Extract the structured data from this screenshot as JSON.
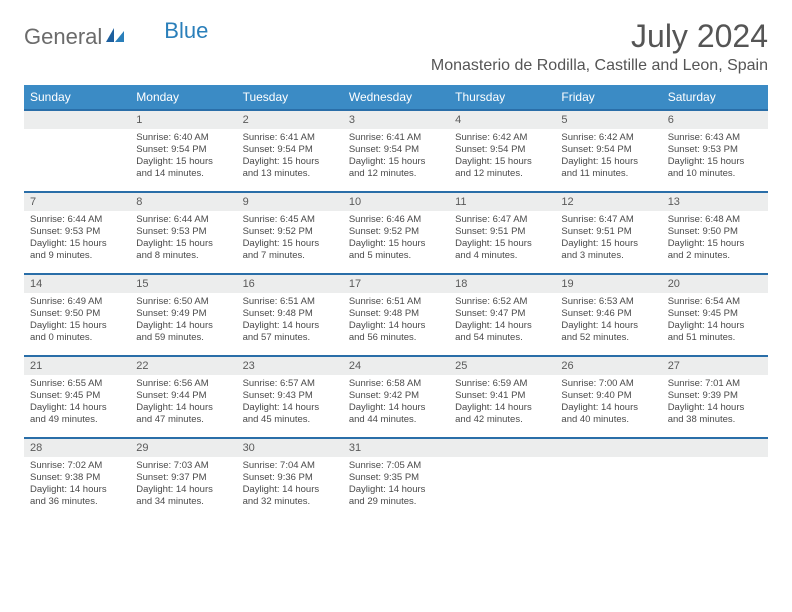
{
  "brand": {
    "word1": "General",
    "word2": "Blue"
  },
  "header": {
    "title": "July 2024",
    "location": "Monasterio de Rodilla, Castille and Leon, Spain"
  },
  "style": {
    "header_bg": "#3b8bc5",
    "header_text": "#ffffff",
    "row_border": "#2a6ea8",
    "daynum_bg": "#eceded",
    "text_color": "#4a4a4a",
    "title_color": "#555555"
  },
  "weekdays": [
    "Sunday",
    "Monday",
    "Tuesday",
    "Wednesday",
    "Thursday",
    "Friday",
    "Saturday"
  ],
  "weeks": [
    [
      null,
      {
        "n": "1",
        "sr": "Sunrise: 6:40 AM",
        "ss": "Sunset: 9:54 PM",
        "d1": "Daylight: 15 hours",
        "d2": "and 14 minutes."
      },
      {
        "n": "2",
        "sr": "Sunrise: 6:41 AM",
        "ss": "Sunset: 9:54 PM",
        "d1": "Daylight: 15 hours",
        "d2": "and 13 minutes."
      },
      {
        "n": "3",
        "sr": "Sunrise: 6:41 AM",
        "ss": "Sunset: 9:54 PM",
        "d1": "Daylight: 15 hours",
        "d2": "and 12 minutes."
      },
      {
        "n": "4",
        "sr": "Sunrise: 6:42 AM",
        "ss": "Sunset: 9:54 PM",
        "d1": "Daylight: 15 hours",
        "d2": "and 12 minutes."
      },
      {
        "n": "5",
        "sr": "Sunrise: 6:42 AM",
        "ss": "Sunset: 9:54 PM",
        "d1": "Daylight: 15 hours",
        "d2": "and 11 minutes."
      },
      {
        "n": "6",
        "sr": "Sunrise: 6:43 AM",
        "ss": "Sunset: 9:53 PM",
        "d1": "Daylight: 15 hours",
        "d2": "and 10 minutes."
      }
    ],
    [
      {
        "n": "7",
        "sr": "Sunrise: 6:44 AM",
        "ss": "Sunset: 9:53 PM",
        "d1": "Daylight: 15 hours",
        "d2": "and 9 minutes."
      },
      {
        "n": "8",
        "sr": "Sunrise: 6:44 AM",
        "ss": "Sunset: 9:53 PM",
        "d1": "Daylight: 15 hours",
        "d2": "and 8 minutes."
      },
      {
        "n": "9",
        "sr": "Sunrise: 6:45 AM",
        "ss": "Sunset: 9:52 PM",
        "d1": "Daylight: 15 hours",
        "d2": "and 7 minutes."
      },
      {
        "n": "10",
        "sr": "Sunrise: 6:46 AM",
        "ss": "Sunset: 9:52 PM",
        "d1": "Daylight: 15 hours",
        "d2": "and 5 minutes."
      },
      {
        "n": "11",
        "sr": "Sunrise: 6:47 AM",
        "ss": "Sunset: 9:51 PM",
        "d1": "Daylight: 15 hours",
        "d2": "and 4 minutes."
      },
      {
        "n": "12",
        "sr": "Sunrise: 6:47 AM",
        "ss": "Sunset: 9:51 PM",
        "d1": "Daylight: 15 hours",
        "d2": "and 3 minutes."
      },
      {
        "n": "13",
        "sr": "Sunrise: 6:48 AM",
        "ss": "Sunset: 9:50 PM",
        "d1": "Daylight: 15 hours",
        "d2": "and 2 minutes."
      }
    ],
    [
      {
        "n": "14",
        "sr": "Sunrise: 6:49 AM",
        "ss": "Sunset: 9:50 PM",
        "d1": "Daylight: 15 hours",
        "d2": "and 0 minutes."
      },
      {
        "n": "15",
        "sr": "Sunrise: 6:50 AM",
        "ss": "Sunset: 9:49 PM",
        "d1": "Daylight: 14 hours",
        "d2": "and 59 minutes."
      },
      {
        "n": "16",
        "sr": "Sunrise: 6:51 AM",
        "ss": "Sunset: 9:48 PM",
        "d1": "Daylight: 14 hours",
        "d2": "and 57 minutes."
      },
      {
        "n": "17",
        "sr": "Sunrise: 6:51 AM",
        "ss": "Sunset: 9:48 PM",
        "d1": "Daylight: 14 hours",
        "d2": "and 56 minutes."
      },
      {
        "n": "18",
        "sr": "Sunrise: 6:52 AM",
        "ss": "Sunset: 9:47 PM",
        "d1": "Daylight: 14 hours",
        "d2": "and 54 minutes."
      },
      {
        "n": "19",
        "sr": "Sunrise: 6:53 AM",
        "ss": "Sunset: 9:46 PM",
        "d1": "Daylight: 14 hours",
        "d2": "and 52 minutes."
      },
      {
        "n": "20",
        "sr": "Sunrise: 6:54 AM",
        "ss": "Sunset: 9:45 PM",
        "d1": "Daylight: 14 hours",
        "d2": "and 51 minutes."
      }
    ],
    [
      {
        "n": "21",
        "sr": "Sunrise: 6:55 AM",
        "ss": "Sunset: 9:45 PM",
        "d1": "Daylight: 14 hours",
        "d2": "and 49 minutes."
      },
      {
        "n": "22",
        "sr": "Sunrise: 6:56 AM",
        "ss": "Sunset: 9:44 PM",
        "d1": "Daylight: 14 hours",
        "d2": "and 47 minutes."
      },
      {
        "n": "23",
        "sr": "Sunrise: 6:57 AM",
        "ss": "Sunset: 9:43 PM",
        "d1": "Daylight: 14 hours",
        "d2": "and 45 minutes."
      },
      {
        "n": "24",
        "sr": "Sunrise: 6:58 AM",
        "ss": "Sunset: 9:42 PM",
        "d1": "Daylight: 14 hours",
        "d2": "and 44 minutes."
      },
      {
        "n": "25",
        "sr": "Sunrise: 6:59 AM",
        "ss": "Sunset: 9:41 PM",
        "d1": "Daylight: 14 hours",
        "d2": "and 42 minutes."
      },
      {
        "n": "26",
        "sr": "Sunrise: 7:00 AM",
        "ss": "Sunset: 9:40 PM",
        "d1": "Daylight: 14 hours",
        "d2": "and 40 minutes."
      },
      {
        "n": "27",
        "sr": "Sunrise: 7:01 AM",
        "ss": "Sunset: 9:39 PM",
        "d1": "Daylight: 14 hours",
        "d2": "and 38 minutes."
      }
    ],
    [
      {
        "n": "28",
        "sr": "Sunrise: 7:02 AM",
        "ss": "Sunset: 9:38 PM",
        "d1": "Daylight: 14 hours",
        "d2": "and 36 minutes."
      },
      {
        "n": "29",
        "sr": "Sunrise: 7:03 AM",
        "ss": "Sunset: 9:37 PM",
        "d1": "Daylight: 14 hours",
        "d2": "and 34 minutes."
      },
      {
        "n": "30",
        "sr": "Sunrise: 7:04 AM",
        "ss": "Sunset: 9:36 PM",
        "d1": "Daylight: 14 hours",
        "d2": "and 32 minutes."
      },
      {
        "n": "31",
        "sr": "Sunrise: 7:05 AM",
        "ss": "Sunset: 9:35 PM",
        "d1": "Daylight: 14 hours",
        "d2": "and 29 minutes."
      },
      null,
      null,
      null
    ]
  ]
}
